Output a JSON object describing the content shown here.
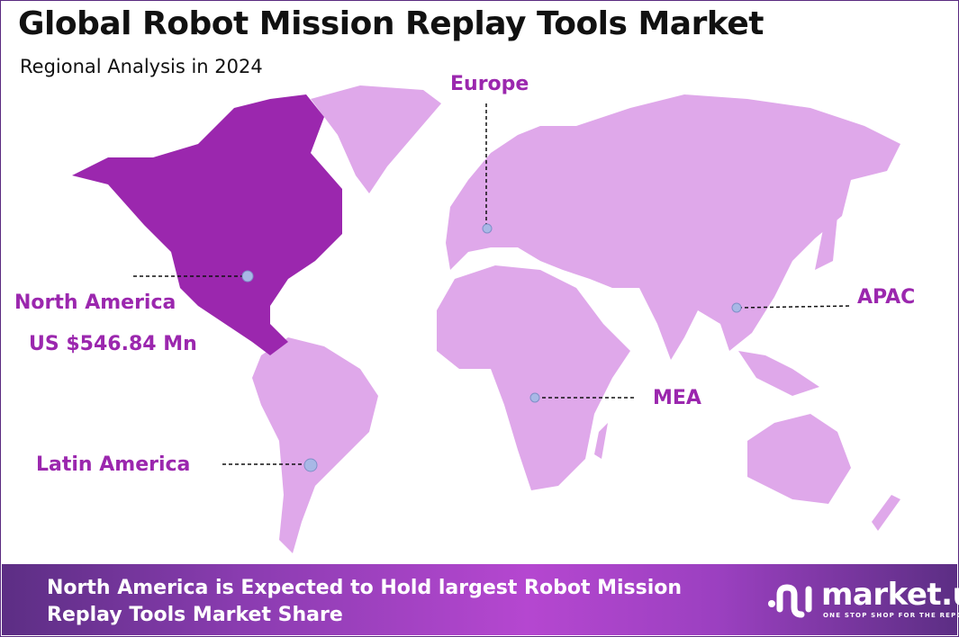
{
  "header": {
    "title": "Global Robot Mission Replay Tools Market",
    "subtitle": "Regional Analysis in 2024"
  },
  "colors": {
    "highlight_region": "#9b27ae",
    "other_regions": "#dfa8ea",
    "label": "#9b27ae",
    "marker": "#a8b8e6",
    "footer_start": "#5c2e84",
    "footer_mid": "#b547d0"
  },
  "regions": [
    {
      "name": "North America",
      "value": "US $546.84 Mn",
      "highlighted": true
    },
    {
      "name": "Europe",
      "highlighted": false
    },
    {
      "name": "APAC",
      "highlighted": false
    },
    {
      "name": "MEA",
      "highlighted": false
    },
    {
      "name": "Latin America",
      "highlighted": false
    }
  ],
  "footer": {
    "line1": "North America is Expected to Hold largest Robot Mission",
    "line2": "Replay Tools Market Share",
    "brand": "market.us",
    "tagline": "ONE STOP SHOP FOR THE REPORTS"
  }
}
